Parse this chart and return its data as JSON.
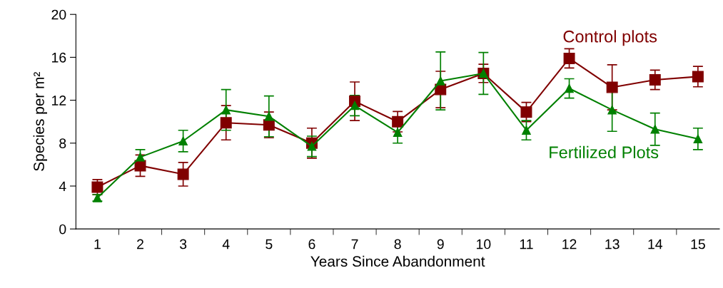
{
  "chart_data": {
    "type": "line",
    "xlabel": "Years Since Abandonment",
    "ylabel": "Species per m²",
    "categories": [
      "1",
      "2",
      "3",
      "4",
      "5",
      "6",
      "7",
      "8",
      "9",
      "10",
      "11",
      "12",
      "13",
      "14",
      "15"
    ],
    "series": [
      {
        "name": "Control plots",
        "color": "#800000",
        "marker": "square",
        "values": [
          3.9,
          5.9,
          5.1,
          9.9,
          9.7,
          8.0,
          11.9,
          10.0,
          13.0,
          14.5,
          10.9,
          15.9,
          13.2,
          13.9,
          14.2
        ],
        "errors": [
          0.7,
          1.0,
          1.1,
          1.6,
          1.2,
          1.4,
          1.8,
          0.95,
          1.7,
          0.85,
          0.9,
          0.9,
          2.1,
          0.9,
          0.95
        ]
      },
      {
        "name": "Fertilized Plots",
        "color": "#008000",
        "marker": "triangle",
        "values": [
          2.9,
          6.7,
          8.2,
          11.1,
          10.5,
          7.7,
          11.5,
          9.0,
          13.8,
          14.5,
          9.2,
          13.1,
          11.1,
          9.3,
          8.4
        ],
        "errors": [
          0.3,
          0.7,
          1.0,
          1.9,
          1.9,
          0.95,
          0.95,
          1.0,
          2.7,
          1.95,
          0.9,
          0.9,
          2.0,
          1.5,
          1.0
        ]
      }
    ],
    "ylim": [
      0,
      20
    ],
    "yticks": [
      0,
      4,
      8,
      12,
      16,
      20
    ],
    "grid": false,
    "legend": false,
    "line_style": "solid"
  }
}
